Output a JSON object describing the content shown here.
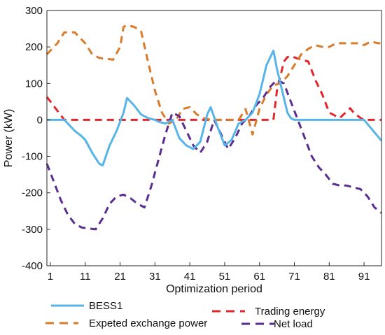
{
  "chart_data": {
    "type": "line",
    "xlabel": "Optimization period",
    "ylabel": "Power (kW)",
    "xlim": [
      0,
      96
    ],
    "ylim": [
      -400,
      300
    ],
    "x_ticks": [
      1,
      11,
      21,
      31,
      41,
      51,
      61,
      71,
      81,
      91
    ],
    "y_ticks": [
      -400,
      -300,
      -200,
      -100,
      0,
      100,
      200,
      300
    ],
    "grid": false,
    "legend_position": "bottom",
    "series": [
      {
        "name": "BESS1",
        "color": "#56b4e9",
        "style": "solid",
        "x": [
          0,
          5,
          6,
          8,
          10,
          11,
          13,
          15,
          16,
          18,
          20,
          22,
          23,
          25,
          27,
          29,
          31,
          32,
          34,
          36,
          38,
          40,
          42,
          44,
          46,
          47,
          49,
          51,
          53,
          55,
          57,
          59,
          61,
          63,
          65,
          66,
          68,
          69,
          70,
          71,
          91,
          96
        ],
        "y": [
          0,
          0,
          -10,
          -30,
          -45,
          -55,
          -90,
          -120,
          -125,
          -70,
          -30,
          20,
          60,
          40,
          15,
          5,
          0,
          -5,
          -10,
          0,
          -50,
          -70,
          -80,
          -60,
          15,
          35,
          -20,
          -70,
          -55,
          -10,
          0,
          20,
          70,
          150,
          190,
          140,
          60,
          20,
          5,
          0,
          0,
          -57
        ]
      },
      {
        "name": "Trading energy",
        "color": "#e3262c",
        "style": "dashed",
        "x": [
          0,
          5,
          65,
          66,
          68,
          69,
          70,
          72,
          75,
          77,
          79,
          81,
          84,
          87,
          88,
          90,
          91,
          96
        ],
        "y": [
          63,
          0,
          0,
          80,
          160,
          172,
          175,
          168,
          160,
          110,
          70,
          20,
          5,
          32,
          20,
          5,
          0,
          0
        ]
      },
      {
        "name": "Expeted exchange power",
        "color": "#d97b2b",
        "style": "dashed",
        "x": [
          0,
          3,
          5,
          8,
          11,
          13,
          15,
          19,
          21,
          22,
          23,
          25,
          27,
          29,
          31,
          33,
          35,
          37,
          39,
          41,
          43,
          45,
          47,
          49,
          51,
          53,
          55,
          57,
          59,
          61,
          63,
          65,
          67,
          69,
          71,
          73,
          75,
          77,
          79,
          81,
          83,
          85,
          87,
          89,
          91,
          93,
          95,
          96
        ],
        "y": [
          180,
          210,
          240,
          240,
          210,
          180,
          170,
          165,
          200,
          255,
          260,
          255,
          245,
          160,
          80,
          20,
          -10,
          0,
          30,
          35,
          15,
          5,
          0,
          0,
          0,
          0,
          0,
          30,
          -40,
          30,
          70,
          95,
          100,
          120,
          150,
          180,
          195,
          205,
          200,
          200,
          210,
          210,
          210,
          210,
          205,
          215,
          210,
          210
        ]
      },
      {
        "name": "Net load",
        "color": "#5a2d91",
        "style": "dashed",
        "x": [
          0,
          2,
          4,
          6,
          8,
          10,
          12,
          14,
          16,
          18,
          20,
          22,
          24,
          26,
          28,
          30,
          32,
          34,
          36,
          38,
          40,
          42,
          44,
          46,
          48,
          50,
          52,
          54,
          56,
          58,
          60,
          62,
          64,
          66,
          68,
          70,
          72,
          74,
          76,
          78,
          80,
          82,
          84,
          86,
          88,
          90,
          92,
          94,
          96
        ],
        "y": [
          -120,
          -170,
          -220,
          -260,
          -285,
          -295,
          -298,
          -300,
          -270,
          -230,
          -210,
          -205,
          -215,
          -230,
          -240,
          -180,
          -110,
          -40,
          20,
          10,
          -30,
          -70,
          -90,
          -60,
          0,
          -40,
          -80,
          -50,
          -10,
          10,
          40,
          60,
          90,
          110,
          100,
          50,
          0,
          -50,
          -100,
          -130,
          -150,
          -175,
          -180,
          -180,
          -185,
          -190,
          -210,
          -240,
          -255
        ]
      }
    ]
  }
}
